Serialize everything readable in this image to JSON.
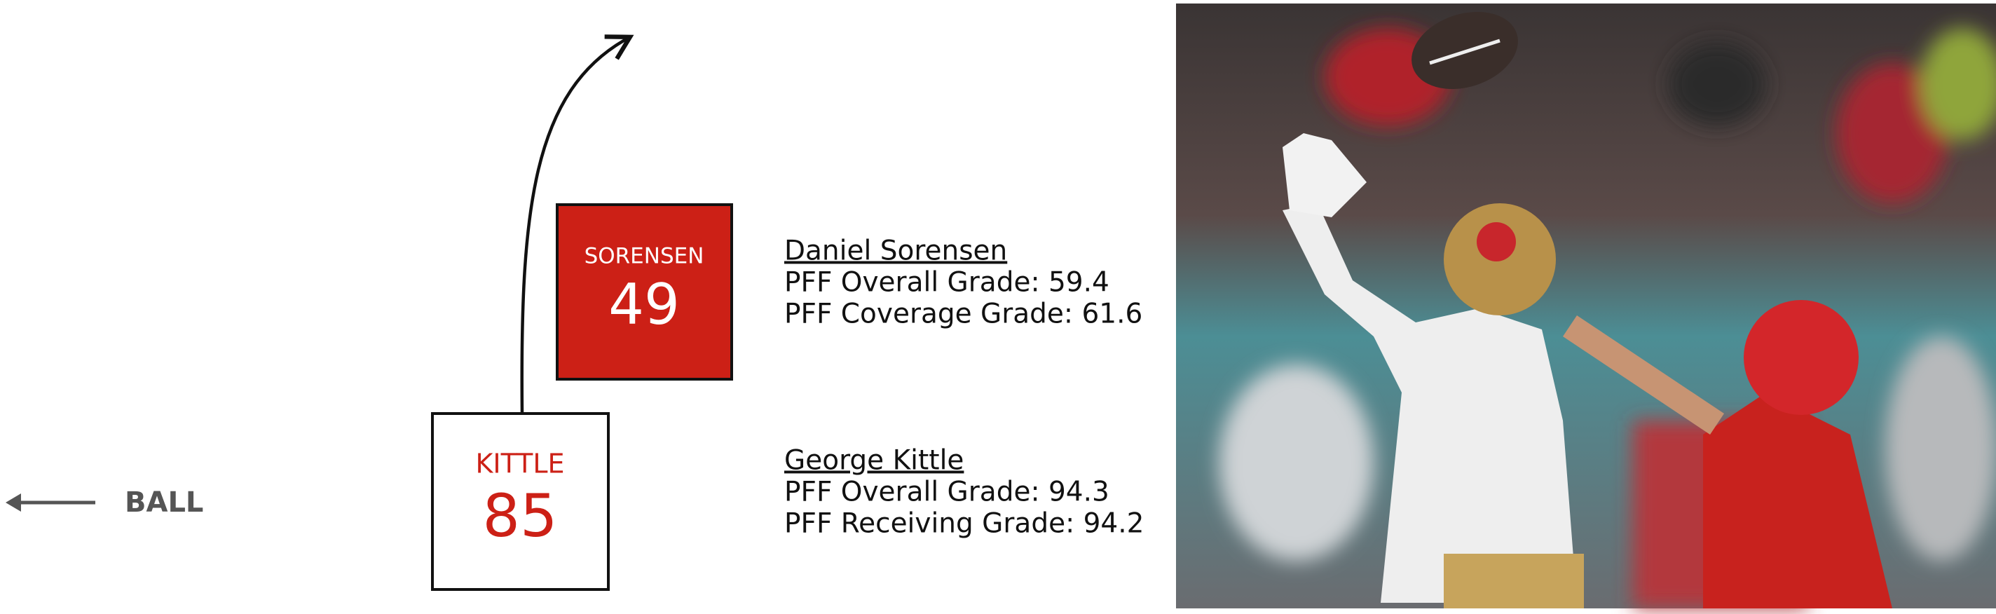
{
  "ball_label": "BALL",
  "players": [
    {
      "box_label": "SORENSEN",
      "number": "49",
      "full_name": "Daniel Sorensen",
      "grades": [
        "PFF Overall Grade: 59.4",
        "PFF Coverage Grade: 61.6"
      ]
    },
    {
      "box_label": "KITTLE",
      "number": "85",
      "full_name": "George Kittle",
      "grades": [
        "PFF Overall Grade: 94.3",
        "PFF Receiving Grade: 94.2"
      ]
    }
  ]
}
